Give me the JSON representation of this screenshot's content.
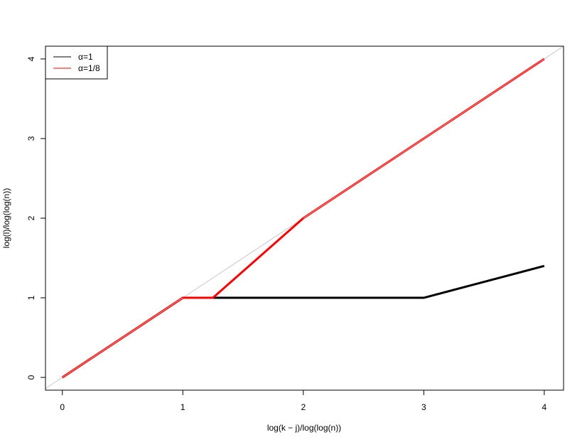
{
  "chart_data": {
    "type": "line",
    "title": "",
    "xlabel": "log(k − j)/log(log(n))",
    "ylabel": "log(l)/log(log(n))",
    "xlim": [
      -0.14,
      4.16
    ],
    "ylim": [
      -0.16,
      4.16
    ],
    "x_ticks": [
      0,
      1,
      2,
      3,
      4
    ],
    "y_ticks": [
      0,
      1,
      2,
      3,
      4
    ],
    "x_tick_labels": [
      "0",
      "1",
      "2",
      "3",
      "4"
    ],
    "y_tick_labels": [
      "0",
      "1",
      "2",
      "3",
      "4"
    ],
    "grid": false,
    "legend_position": "top-left",
    "reference_line": {
      "x": [
        -0.14,
        4.16
      ],
      "y": [
        -0.14,
        4.16
      ],
      "color": "#c8c8c8"
    },
    "series": [
      {
        "name": "α=1",
        "color": "#000000",
        "x": [
          0,
          1,
          3,
          4
        ],
        "y": [
          0,
          1,
          1,
          1.4
        ]
      },
      {
        "name": "α=1/8",
        "color": "#ff0000",
        "x": [
          0,
          1,
          1.25,
          2,
          4
        ],
        "y": [
          0,
          1,
          1,
          2,
          4
        ]
      }
    ]
  }
}
